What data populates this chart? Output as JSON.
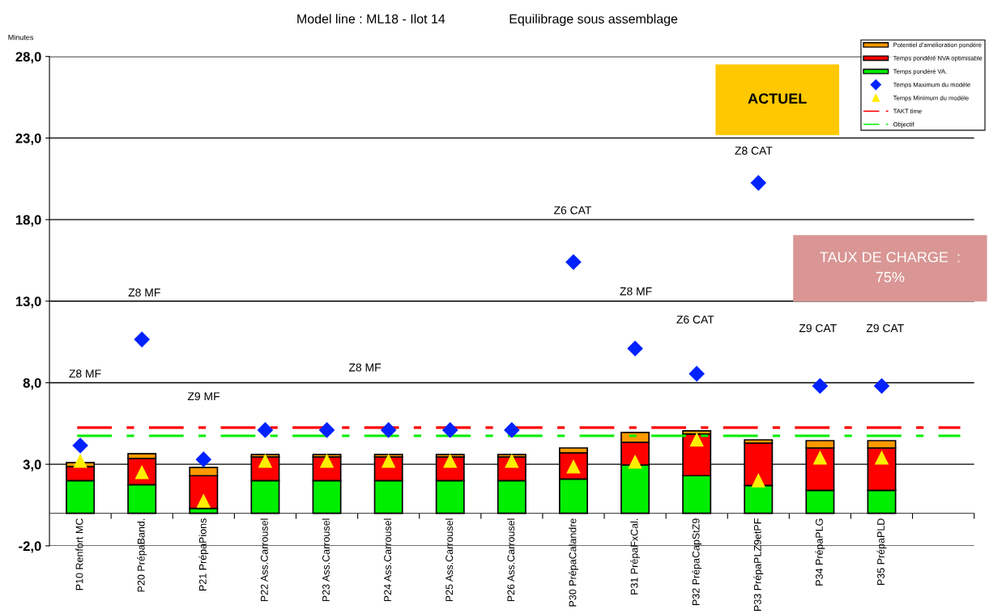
{
  "chart_data": {
    "type": "bar",
    "title": "Model line : ML18 - Ilot 14",
    "subtitle": "Equilibrage sous assemblage",
    "ylabel": "Minutes",
    "categories": [
      "P10 Renfort MC",
      "P20 PrépaBand.",
      "P21 PrépaPions",
      "P22 Ass.Carrousel",
      "P23 Ass.Carrousel",
      "P24 Ass.Carrousel",
      "P25 Ass.Carrousel",
      "P26 Ass.Carrousel",
      "P30 PrépaCalandre",
      "P31 PrépaFxCal.",
      "P32 PrépaCapStZ9",
      "P33 PrépaPLZ9etPF",
      "P34 PrépaPLG",
      "P35 PrépaPLD",
      null
    ],
    "stacked": true,
    "series": [
      {
        "name": "Temps pondéré VA.",
        "color": "#00ee00",
        "values": [
          2.0,
          1.75,
          0.3,
          2.0,
          2.0,
          2.0,
          2.0,
          2.0,
          2.1,
          2.95,
          2.3,
          1.7,
          1.4,
          1.4,
          null
        ]
      },
      {
        "name": "Temps pondéré NVA optimisable",
        "color": "#ff0000",
        "values": [
          0.85,
          1.6,
          2.0,
          1.45,
          1.45,
          1.45,
          1.45,
          1.45,
          1.6,
          1.4,
          2.55,
          2.6,
          2.6,
          2.6,
          null
        ]
      },
      {
        "name": "Potentiel d'amélioration pondéré",
        "color": "#ff9900",
        "values": [
          0.25,
          0.3,
          0.5,
          0.15,
          0.15,
          0.15,
          0.15,
          0.15,
          0.3,
          0.6,
          0.2,
          0.2,
          0.45,
          0.45,
          null
        ]
      },
      {
        "name": "Temps Maximum du modèle",
        "type": "scatter",
        "marker": "diamond",
        "color": "#0022ff",
        "values": [
          4.15,
          10.65,
          3.3,
          5.1,
          5.1,
          5.1,
          5.1,
          5.1,
          15.4,
          10.1,
          8.55,
          20.25,
          7.8,
          7.8,
          null
        ]
      },
      {
        "name": "Temps Minimum du modèle",
        "type": "scatter",
        "marker": "triangle",
        "color": "#ffee00",
        "values": [
          3.2,
          2.5,
          0.75,
          3.2,
          3.2,
          3.2,
          3.2,
          3.2,
          2.85,
          3.15,
          4.5,
          2.0,
          3.4,
          3.4,
          null
        ]
      }
    ],
    "ref_lines": [
      {
        "axis": "y",
        "value": 5.25,
        "label": "TAKT time",
        "color": "#ff0000",
        "line_style": "dashed"
      },
      {
        "axis": "y",
        "value": 4.75,
        "label": "Objectif",
        "color": "#00ee00",
        "line_style": "dashed"
      }
    ],
    "ylim": [
      -2,
      28
    ],
    "yticks": [
      {
        "value": -2,
        "label": "-2,0"
      },
      {
        "value": 3,
        "label": "3,0"
      },
      {
        "value": 8,
        "label": "8,0"
      },
      {
        "value": 13,
        "label": "13,0"
      },
      {
        "value": 18,
        "label": "18,0"
      },
      {
        "value": 23,
        "label": "23,0"
      },
      {
        "value": 28,
        "label": "28,0"
      }
    ],
    "grid": "y",
    "legend": "top right",
    "annotations": [
      "Z8 MF",
      "Z8 MF",
      "Z9 MF",
      "Z8 MF",
      "Z6 CAT",
      "Z8 MF",
      "Z6 CAT",
      "Z8 CAT",
      "Z9 CAT",
      "Z9 CAT",
      "ACTUEL",
      "TAUX DE CHARGE  :\n75%"
    ]
  }
}
